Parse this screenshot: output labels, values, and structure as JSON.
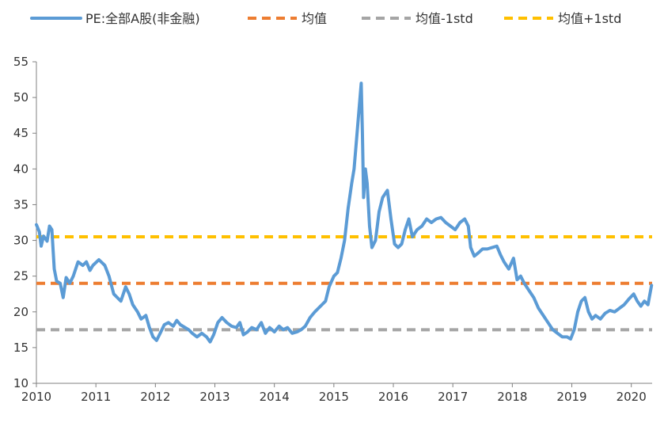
{
  "chart_data": {
    "type": "line",
    "title": "",
    "xlabel": "",
    "ylabel": "",
    "xlim": [
      2010.0,
      2020.35
    ],
    "ylim": [
      10,
      55
    ],
    "y_ticks": [
      10,
      15,
      20,
      25,
      30,
      35,
      40,
      45,
      50,
      55
    ],
    "x_ticks": [
      {
        "value": 2010,
        "label": "2010"
      },
      {
        "value": 2011,
        "label": "2011"
      },
      {
        "value": 2012,
        "label": "2012"
      },
      {
        "value": 2013,
        "label": "2013"
      },
      {
        "value": 2014,
        "label": "2014"
      },
      {
        "value": 2015,
        "label": "2015"
      },
      {
        "value": 2016,
        "label": "2016"
      },
      {
        "value": 2017,
        "label": "2017"
      },
      {
        "value": 2018,
        "label": "2018"
      },
      {
        "value": 2019,
        "label": "2019"
      },
      {
        "value": 2020,
        "label": "2020"
      }
    ],
    "grid": false,
    "legend_position": "top",
    "series": [
      {
        "name": "PE:全部A股(非金融)",
        "color": "#5B9BD5",
        "style": "solid",
        "points": [
          [
            2010.0,
            32.2
          ],
          [
            2010.05,
            31.2
          ],
          [
            2010.08,
            29.2
          ],
          [
            2010.12,
            30.6
          ],
          [
            2010.18,
            29.9
          ],
          [
            2010.22,
            32.0
          ],
          [
            2010.26,
            31.5
          ],
          [
            2010.3,
            26.0
          ],
          [
            2010.34,
            24.3
          ],
          [
            2010.4,
            24.0
          ],
          [
            2010.45,
            22.0
          ],
          [
            2010.5,
            24.8
          ],
          [
            2010.56,
            24.0
          ],
          [
            2010.62,
            25.0
          ],
          [
            2010.7,
            27.0
          ],
          [
            2010.78,
            26.5
          ],
          [
            2010.84,
            27.0
          ],
          [
            2010.9,
            25.8
          ],
          [
            2010.95,
            26.5
          ],
          [
            2011.05,
            27.3
          ],
          [
            2011.15,
            26.5
          ],
          [
            2011.22,
            25.0
          ],
          [
            2011.3,
            22.5
          ],
          [
            2011.36,
            22.0
          ],
          [
            2011.42,
            21.5
          ],
          [
            2011.5,
            23.5
          ],
          [
            2011.56,
            22.5
          ],
          [
            2011.62,
            21.0
          ],
          [
            2011.7,
            20.0
          ],
          [
            2011.76,
            19.0
          ],
          [
            2011.84,
            19.5
          ],
          [
            2011.9,
            17.8
          ],
          [
            2011.96,
            16.5
          ],
          [
            2012.02,
            16.0
          ],
          [
            2012.08,
            17.0
          ],
          [
            2012.15,
            18.2
          ],
          [
            2012.22,
            18.5
          ],
          [
            2012.3,
            18.0
          ],
          [
            2012.36,
            18.8
          ],
          [
            2012.42,
            18.2
          ],
          [
            2012.5,
            17.8
          ],
          [
            2012.56,
            17.5
          ],
          [
            2012.62,
            17.0
          ],
          [
            2012.7,
            16.5
          ],
          [
            2012.78,
            17.0
          ],
          [
            2012.86,
            16.5
          ],
          [
            2012.92,
            15.8
          ],
          [
            2012.98,
            16.8
          ],
          [
            2013.05,
            18.5
          ],
          [
            2013.12,
            19.2
          ],
          [
            2013.2,
            18.5
          ],
          [
            2013.28,
            18.0
          ],
          [
            2013.36,
            17.8
          ],
          [
            2013.42,
            18.5
          ],
          [
            2013.48,
            16.8
          ],
          [
            2013.55,
            17.2
          ],
          [
            2013.62,
            17.8
          ],
          [
            2013.7,
            17.5
          ],
          [
            2013.78,
            18.5
          ],
          [
            2013.85,
            17.0
          ],
          [
            2013.92,
            17.8
          ],
          [
            2014.0,
            17.2
          ],
          [
            2014.08,
            18.0
          ],
          [
            2014.15,
            17.5
          ],
          [
            2014.22,
            17.8
          ],
          [
            2014.3,
            17.0
          ],
          [
            2014.38,
            17.2
          ],
          [
            2014.45,
            17.5
          ],
          [
            2014.52,
            18.0
          ],
          [
            2014.6,
            19.2
          ],
          [
            2014.68,
            20.0
          ],
          [
            2014.74,
            20.5
          ],
          [
            2014.8,
            21.0
          ],
          [
            2014.86,
            21.5
          ],
          [
            2014.92,
            23.5
          ],
          [
            2015.0,
            25.0
          ],
          [
            2015.06,
            25.5
          ],
          [
            2015.12,
            27.5
          ],
          [
            2015.18,
            30.0
          ],
          [
            2015.24,
            34.5
          ],
          [
            2015.3,
            38.0
          ],
          [
            2015.34,
            40.0
          ],
          [
            2015.38,
            44.0
          ],
          [
            2015.42,
            48.0
          ],
          [
            2015.46,
            52.0
          ],
          [
            2015.48,
            45.0
          ],
          [
            2015.5,
            36.0
          ],
          [
            2015.53,
            40.0
          ],
          [
            2015.56,
            38.0
          ],
          [
            2015.6,
            32.0
          ],
          [
            2015.64,
            29.0
          ],
          [
            2015.7,
            30.0
          ],
          [
            2015.76,
            34.0
          ],
          [
            2015.82,
            36.0
          ],
          [
            2015.9,
            37.0
          ],
          [
            2015.96,
            33.0
          ],
          [
            2016.02,
            29.5
          ],
          [
            2016.08,
            29.0
          ],
          [
            2016.14,
            29.5
          ],
          [
            2016.2,
            31.5
          ],
          [
            2016.26,
            33.0
          ],
          [
            2016.32,
            30.5
          ],
          [
            2016.4,
            31.5
          ],
          [
            2016.48,
            32.0
          ],
          [
            2016.56,
            33.0
          ],
          [
            2016.64,
            32.5
          ],
          [
            2016.72,
            33.0
          ],
          [
            2016.8,
            33.2
          ],
          [
            2016.88,
            32.5
          ],
          [
            2016.96,
            32.0
          ],
          [
            2017.04,
            31.5
          ],
          [
            2017.12,
            32.5
          ],
          [
            2017.2,
            33.0
          ],
          [
            2017.26,
            32.0
          ],
          [
            2017.3,
            29.0
          ],
          [
            2017.36,
            27.8
          ],
          [
            2017.42,
            28.2
          ],
          [
            2017.5,
            28.8
          ],
          [
            2017.58,
            28.8
          ],
          [
            2017.66,
            29.0
          ],
          [
            2017.74,
            29.2
          ],
          [
            2017.8,
            28.0
          ],
          [
            2017.86,
            27.0
          ],
          [
            2017.94,
            26.0
          ],
          [
            2018.02,
            27.5
          ],
          [
            2018.08,
            24.5
          ],
          [
            2018.14,
            25.0
          ],
          [
            2018.2,
            24.0
          ],
          [
            2018.28,
            23.0
          ],
          [
            2018.36,
            22.0
          ],
          [
            2018.44,
            20.5
          ],
          [
            2018.52,
            19.5
          ],
          [
            2018.6,
            18.5
          ],
          [
            2018.68,
            17.5
          ],
          [
            2018.76,
            17.0
          ],
          [
            2018.84,
            16.5
          ],
          [
            2018.92,
            16.5
          ],
          [
            2018.98,
            16.2
          ],
          [
            2019.04,
            17.5
          ],
          [
            2019.1,
            20.0
          ],
          [
            2019.16,
            21.5
          ],
          [
            2019.22,
            22.0
          ],
          [
            2019.28,
            20.0
          ],
          [
            2019.34,
            19.0
          ],
          [
            2019.4,
            19.5
          ],
          [
            2019.48,
            19.0
          ],
          [
            2019.56,
            19.8
          ],
          [
            2019.64,
            20.2
          ],
          [
            2019.72,
            20.0
          ],
          [
            2019.8,
            20.5
          ],
          [
            2019.88,
            21.0
          ],
          [
            2019.96,
            21.8
          ],
          [
            2020.04,
            22.5
          ],
          [
            2020.1,
            21.5
          ],
          [
            2020.16,
            20.8
          ],
          [
            2020.22,
            21.5
          ],
          [
            2020.28,
            21.0
          ],
          [
            2020.34,
            23.7
          ]
        ]
      },
      {
        "name": "均值",
        "color": "#ED7D31",
        "style": "dashed",
        "points": [
          [
            2010.0,
            24.0
          ],
          [
            2020.35,
            24.0
          ]
        ]
      },
      {
        "name": "均值-1std",
        "color": "#A5A5A5",
        "style": "dashed",
        "points": [
          [
            2010.0,
            17.5
          ],
          [
            2020.35,
            17.5
          ]
        ]
      },
      {
        "name": "均值+1std",
        "color": "#FFC000",
        "style": "dashed",
        "points": [
          [
            2010.0,
            30.5
          ],
          [
            2020.35,
            30.5
          ]
        ]
      }
    ]
  }
}
